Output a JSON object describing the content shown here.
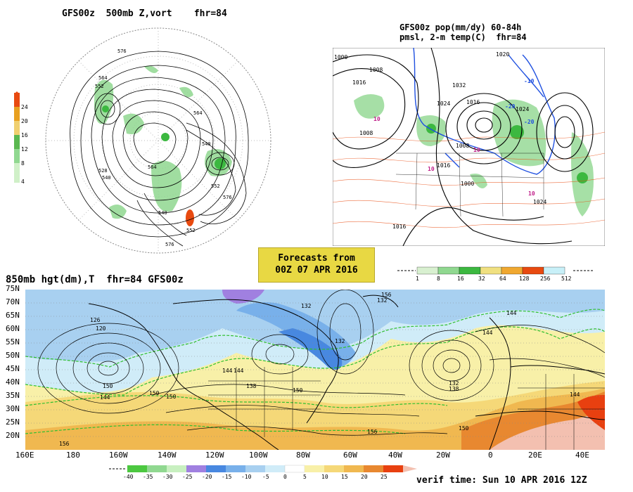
{
  "top_left": {
    "title": "GFS00z  500mb Z,vort    fhr=84",
    "legend_ticks": [
      "24",
      "20",
      "16",
      "12",
      "8",
      "4"
    ],
    "legend_colors": [
      "#e84a10",
      "#e8a020",
      "#f0d070",
      "#5ab850",
      "#90d890",
      "#d0f0c8"
    ],
    "contour_labels": [
      "576",
      "564",
      "552",
      "540",
      "528",
      "564",
      "552",
      "540",
      "576",
      "564",
      "552",
      "540",
      "576"
    ]
  },
  "top_right": {
    "title_line1": "GFS00z pop(mm/dy) 60-84h",
    "title_line2": "pmsl, 2-m temp(C)  fhr=84",
    "isobar_labels": [
      "1000",
      "1008",
      "1016",
      "1008",
      "1032",
      "1024",
      "1016",
      "1008",
      "1020",
      "1000",
      "1016",
      "1024",
      "1016",
      "1024"
    ],
    "temp_labels": [
      "10",
      "10",
      "-10",
      "-20",
      "-20",
      "10",
      "10"
    ],
    "legend_ticks": [
      "1",
      "8",
      "16",
      "32",
      "64",
      "128",
      "256",
      "512"
    ],
    "legend_colors": [
      "#d8f0d0",
      "#90d890",
      "#3cb840",
      "#f0e080",
      "#f0a830",
      "#e84a10",
      "#c8f0f8"
    ]
  },
  "banner": {
    "line1": "Forecasts from",
    "line2": "00Z 07 APR 2016"
  },
  "bottom": {
    "title": "850mb hgt(dm),T  fhr=84 GFS00z",
    "lat_labels": [
      "75N",
      "70N",
      "65N",
      "60N",
      "55N",
      "50N",
      "45N",
      "40N",
      "35N",
      "30N",
      "25N",
      "20N"
    ],
    "lon_labels": [
      "160E",
      "180",
      "160W",
      "140W",
      "120W",
      "100W",
      "80W",
      "60W",
      "40W",
      "20W",
      "0",
      "20E",
      "40E"
    ],
    "height_labels": [
      "126",
      "120",
      "132",
      "132",
      "144",
      "150",
      "150",
      "156",
      "132",
      "138",
      "144",
      "150",
      "150",
      "156",
      "144",
      "144",
      "138",
      "132",
      "144",
      "150",
      "144",
      "156"
    ],
    "legend_ticks": [
      "-40",
      "-35",
      "-30",
      "-25",
      "-20",
      "-15",
      "-10",
      "-5",
      "0",
      "5",
      "10",
      "15",
      "20",
      "25"
    ],
    "legend_colors": [
      "#4cc840",
      "#90d890",
      "#c8f0c0",
      "#a080e0",
      "#4888e0",
      "#78b0ea",
      "#a8d0f0",
      "#d0ecf8",
      "#ffffff",
      "#f8f0a8",
      "#f5d878",
      "#f0b850",
      "#e88830",
      "#e84010"
    ],
    "verif_time": "verif time: Sun 10 APR 2016 12Z"
  },
  "colors": {
    "cold_blue": "#78b0ea",
    "deep_blue": "#4888e0",
    "warm_yellow": "#f5d878",
    "warm_orange": "#f0b850",
    "hot_red": "#e84010",
    "green_dash": "#30c030",
    "contour": "#000000"
  }
}
